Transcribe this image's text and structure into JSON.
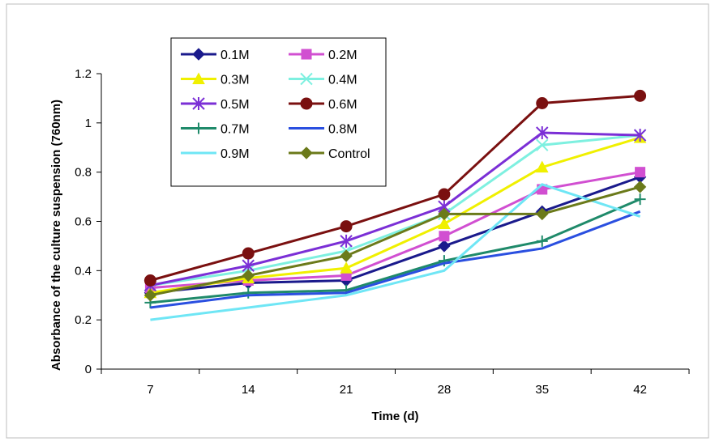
{
  "chart_data": {
    "type": "line",
    "title": "",
    "xlabel": "Time (d)",
    "ylabel": "Absorbance of the culture suspension (760nm)",
    "categories": [
      "7",
      "14",
      "21",
      "28",
      "35",
      "42"
    ],
    "ylim": [
      0,
      1.2
    ],
    "yticks": [
      "0",
      "0.2",
      "0.4",
      "0.6",
      "0.8",
      "1",
      "1.2"
    ],
    "grid": false,
    "legend_position": "top-left",
    "series": [
      {
        "name": "0.1M",
        "color": "#1a1a8c",
        "marker": "diamond",
        "values": [
          0.31,
          0.35,
          0.36,
          0.5,
          0.64,
          0.78
        ]
      },
      {
        "name": "0.2M",
        "color": "#d14fd1",
        "marker": "square",
        "values": [
          0.33,
          0.36,
          0.38,
          0.54,
          0.73,
          0.8
        ]
      },
      {
        "name": "0.3M",
        "color": "#f0f000",
        "marker": "triangle",
        "values": [
          0.31,
          0.37,
          0.41,
          0.59,
          0.82,
          0.94
        ]
      },
      {
        "name": "0.4M",
        "color": "#7ef0e0",
        "marker": "x",
        "values": [
          0.34,
          0.4,
          0.48,
          0.63,
          0.91,
          0.95
        ]
      },
      {
        "name": "0.5M",
        "color": "#7b2fd6",
        "marker": "asterisk",
        "values": [
          0.34,
          0.42,
          0.52,
          0.66,
          0.96,
          0.95
        ]
      },
      {
        "name": "0.6M",
        "color": "#7a1010",
        "marker": "circle",
        "values": [
          0.36,
          0.47,
          0.58,
          0.71,
          1.08,
          1.11
        ]
      },
      {
        "name": "0.7M",
        "color": "#1f8a6a",
        "marker": "plus",
        "values": [
          0.27,
          0.31,
          0.32,
          0.44,
          0.52,
          0.69
        ]
      },
      {
        "name": "0.8M",
        "color": "#2a4fe0",
        "marker": "none",
        "values": [
          0.25,
          0.3,
          0.31,
          0.43,
          0.49,
          0.64
        ]
      },
      {
        "name": "0.9M",
        "color": "#6fe6f5",
        "marker": "none",
        "values": [
          0.2,
          0.25,
          0.3,
          0.4,
          0.75,
          0.62
        ]
      },
      {
        "name": "Control",
        "color": "#6b7a1a",
        "marker": "diamond",
        "values": [
          0.3,
          0.38,
          0.46,
          0.63,
          0.63,
          0.74
        ]
      }
    ]
  }
}
